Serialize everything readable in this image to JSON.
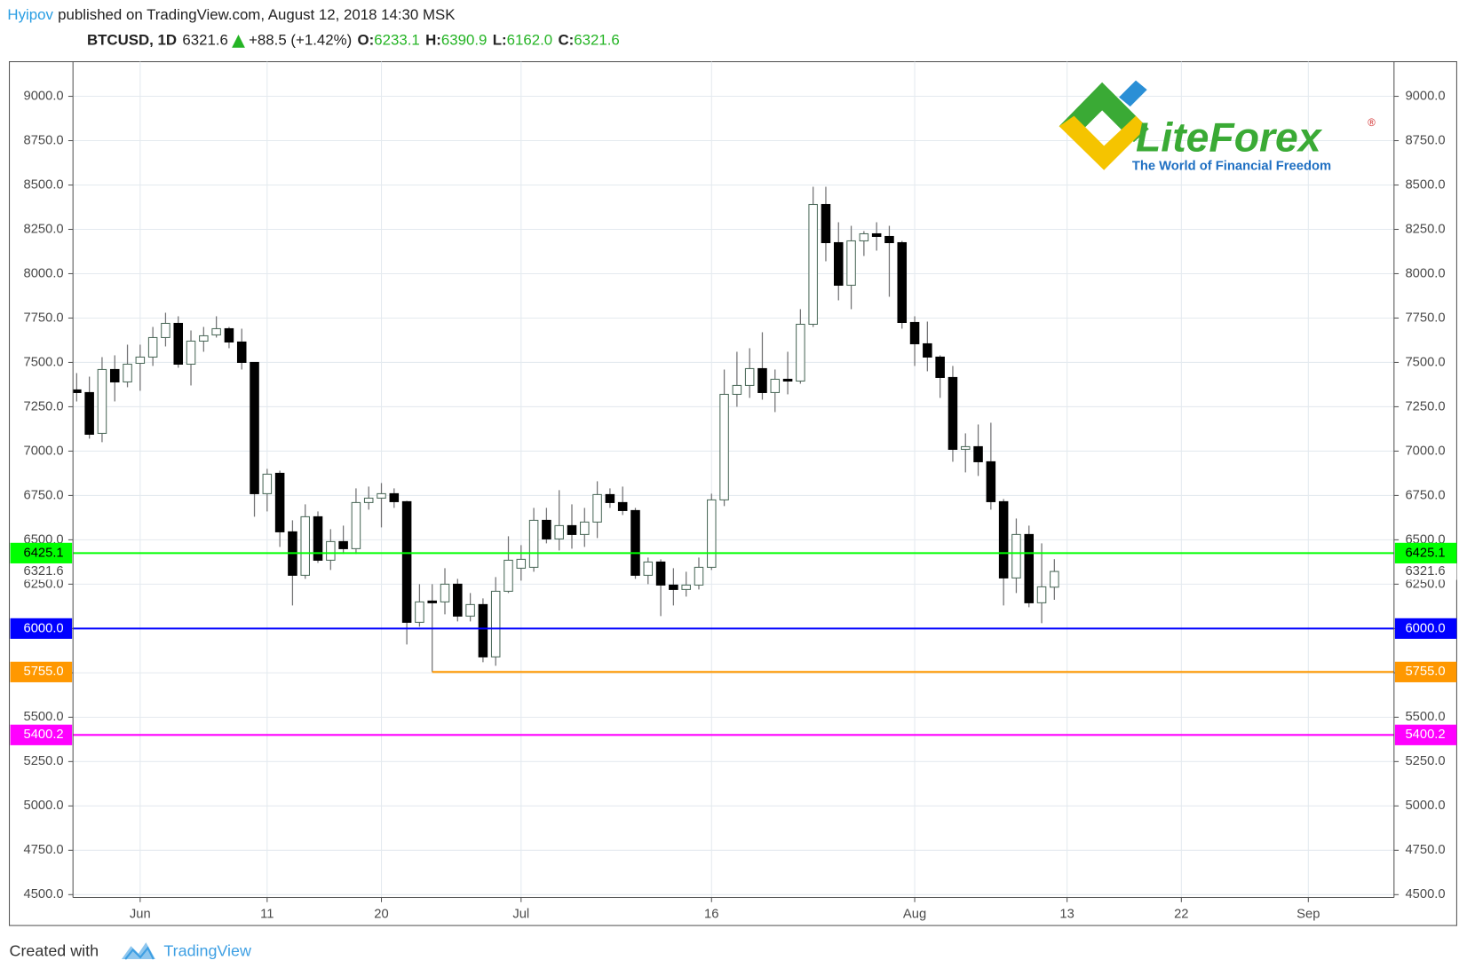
{
  "header": {
    "author": "Hyipov",
    "published": "published on TradingView.com, August 12, 2018 14:30 MSK",
    "symbol": "BTCUSD, 1D",
    "price": "6321.6",
    "change": "+88.5 (+1.42%)",
    "o_label": "O:",
    "o_value": "6233.1",
    "h_label": "H:",
    "h_value": "6390.9",
    "l_label": "L:",
    "l_value": "6162.0",
    "c_label": "C:",
    "c_value": "6321.6"
  },
  "logo": {
    "name": "LiteForex",
    "tagline": "The World of Financial Freedom",
    "mark": "®"
  },
  "footer": {
    "created": "Created with",
    "brand": "TradingView"
  },
  "chart_data": {
    "type": "candlestick",
    "x": [
      "2018-05-27",
      "2018-05-28",
      "2018-05-29",
      "2018-05-30",
      "2018-05-31",
      "2018-06-01",
      "2018-06-02",
      "2018-06-03",
      "2018-06-04",
      "2018-06-05",
      "2018-06-06",
      "2018-06-07",
      "2018-06-08",
      "2018-06-09",
      "2018-06-10",
      "2018-06-11",
      "2018-06-12",
      "2018-06-13",
      "2018-06-14",
      "2018-06-15",
      "2018-06-16",
      "2018-06-17",
      "2018-06-18",
      "2018-06-19",
      "2018-06-20",
      "2018-06-21",
      "2018-06-22",
      "2018-06-23",
      "2018-06-24",
      "2018-06-25",
      "2018-06-26",
      "2018-06-27",
      "2018-06-28",
      "2018-06-29",
      "2018-06-30",
      "2018-07-01",
      "2018-07-02",
      "2018-07-03",
      "2018-07-04",
      "2018-07-05",
      "2018-07-06",
      "2018-07-07",
      "2018-07-08",
      "2018-07-09",
      "2018-07-10",
      "2018-07-11",
      "2018-07-12",
      "2018-07-13",
      "2018-07-14",
      "2018-07-15",
      "2018-07-16",
      "2018-07-17",
      "2018-07-18",
      "2018-07-19",
      "2018-07-20",
      "2018-07-21",
      "2018-07-22",
      "2018-07-23",
      "2018-07-24",
      "2018-07-25",
      "2018-07-26",
      "2018-07-27",
      "2018-07-28",
      "2018-07-29",
      "2018-07-30",
      "2018-07-31",
      "2018-08-01",
      "2018-08-02",
      "2018-08-03",
      "2018-08-04",
      "2018-08-05",
      "2018-08-06",
      "2018-08-07",
      "2018-08-08",
      "2018-08-09",
      "2018-08-10",
      "2018-08-11",
      "2018-08-12"
    ],
    "open": [
      7345,
      7330,
      7100,
      7460,
      7390,
      7495,
      7530,
      7640,
      7720,
      7490,
      7620,
      7655,
      7690,
      7615,
      7500,
      6760,
      6875,
      6545,
      6300,
      6630,
      6385,
      6490,
      6450,
      6710,
      6735,
      6760,
      6715,
      6035,
      6155,
      6150,
      6250,
      6070,
      6135,
      5840,
      6210,
      6340,
      6345,
      6610,
      6505,
      6580,
      6530,
      6600,
      6755,
      6710,
      6665,
      6300,
      6375,
      6245,
      6220,
      6245,
      6345,
      6725,
      7320,
      7370,
      7465,
      7330,
      7405,
      7395,
      7715,
      8390,
      8175,
      7935,
      8185,
      8225,
      8210,
      8175,
      7725,
      7605,
      7530,
      7415,
      7010,
      7025,
      6940,
      6715,
      6285,
      6530,
      6145,
      6233.1
    ],
    "high": [
      7440,
      7420,
      7530,
      7540,
      7600,
      7600,
      7700,
      7780,
      7760,
      7680,
      7700,
      7760,
      7700,
      7690,
      7500,
      6900,
      6890,
      6610,
      6700,
      6660,
      6560,
      6580,
      6790,
      6800,
      6820,
      6790,
      6720,
      6250,
      6250,
      6340,
      6280,
      6200,
      6170,
      6290,
      6520,
      6470,
      6680,
      6680,
      6780,
      6700,
      6680,
      6830,
      6790,
      6800,
      6680,
      6400,
      6390,
      6340,
      6320,
      6400,
      6760,
      7460,
      7560,
      7580,
      7670,
      7460,
      7560,
      7800,
      8490,
      8490,
      8290,
      8270,
      8240,
      8290,
      8270,
      8185,
      7760,
      7730,
      7540,
      7480,
      7100,
      7150,
      7160,
      6730,
      6620,
      6580,
      6480,
      6390.9
    ],
    "low": [
      7280,
      7070,
      7050,
      7280,
      7360,
      7340,
      7480,
      7590,
      7470,
      7370,
      7560,
      7640,
      7580,
      7460,
      6630,
      6660,
      6460,
      6130,
      6280,
      6370,
      6330,
      6420,
      6420,
      6670,
      6570,
      6680,
      5910,
      6010,
      5755,
      6080,
      6040,
      6040,
      5810,
      5790,
      6200,
      6270,
      6320,
      6480,
      6440,
      6450,
      6460,
      6510,
      6680,
      6640,
      6280,
      6250,
      6070,
      6130,
      6180,
      6220,
      6330,
      6690,
      7250,
      7300,
      7290,
      7220,
      7320,
      7380,
      7700,
      8070,
      7850,
      7800,
      8100,
      8130,
      7870,
      7690,
      7480,
      7450,
      7300,
      6940,
      6880,
      6860,
      6670,
      6130,
      6200,
      6120,
      6030,
      6162.0
    ],
    "close": [
      7330,
      7095,
      7460,
      7390,
      7490,
      7530,
      7640,
      7720,
      7490,
      7620,
      7650,
      7690,
      7615,
      7500,
      6760,
      6870,
      6545,
      6300,
      6630,
      6385,
      6490,
      6450,
      6710,
      6735,
      6760,
      6715,
      6035,
      6150,
      6145,
      6250,
      6070,
      6135,
      5840,
      6210,
      6385,
      6390,
      6610,
      6505,
      6580,
      6530,
      6600,
      6755,
      6710,
      6665,
      6300,
      6375,
      6245,
      6220,
      6245,
      6345,
      6725,
      7320,
      7370,
      7465,
      7330,
      7405,
      7395,
      7715,
      8390,
      8175,
      7935,
      8185,
      8225,
      8210,
      8175,
      7725,
      7605,
      7530,
      7415,
      7010,
      7025,
      6940,
      6715,
      6285,
      6530,
      6145,
      6235,
      6321.6
    ],
    "up_color": "#ffffff",
    "up_border": "#4d6b5b",
    "down_color": "#000000",
    "wick_color": "#737375",
    "xlim": [
      "2018-05-26T17:00Z",
      "2018-09-07T18:00Z"
    ],
    "xticks": [
      {
        "value": "2018-06-01",
        "label": "Jun"
      },
      {
        "value": "2018-06-11",
        "label": "11"
      },
      {
        "value": "2018-06-20",
        "label": "20"
      },
      {
        "value": "2018-07-01",
        "label": "Jul"
      },
      {
        "value": "2018-07-16",
        "label": "16"
      },
      {
        "value": "2018-08-01",
        "label": "Aug"
      },
      {
        "value": "2018-08-13",
        "label": "13"
      },
      {
        "value": "2018-08-22",
        "label": "22"
      },
      {
        "value": "2018-09-01",
        "label": "Sep"
      }
    ],
    "ylim": [
      4484,
      9195
    ],
    "yticks": [
      {
        "value": 4500,
        "label": "4500.0"
      },
      {
        "value": 4750,
        "label": "4750.0"
      },
      {
        "value": 5000,
        "label": "5000.0"
      },
      {
        "value": 5250,
        "label": "5250.0"
      },
      {
        "value": 5500,
        "label": "5500.0"
      },
      {
        "value": 5750,
        "label": "5750.0"
      },
      {
        "value": 6000,
        "label": "6000.0"
      },
      {
        "value": 6250,
        "label": "6250.0"
      },
      {
        "value": 6500,
        "label": "6500.0"
      },
      {
        "value": 6750,
        "label": "6750.0"
      },
      {
        "value": 7000,
        "label": "7000.0"
      },
      {
        "value": 7250,
        "label": "7250.0"
      },
      {
        "value": 7500,
        "label": "7500.0"
      },
      {
        "value": 7750,
        "label": "7750.0"
      },
      {
        "value": 8000,
        "label": "8000.0"
      },
      {
        "value": 8250,
        "label": "8250.0"
      },
      {
        "value": 8500,
        "label": "8500.0"
      },
      {
        "value": 8750,
        "label": "8750.0"
      },
      {
        "value": 9000,
        "label": "9000.0"
      }
    ],
    "grid": true,
    "levels": [
      {
        "value": 6425.1,
        "label": "6425.1",
        "color": "#00ff00",
        "text_color": "#000000"
      },
      {
        "value": 6000,
        "label": "6000.0",
        "color": "#0000ff",
        "text_color": "#ffffff"
      },
      {
        "value": 5755,
        "label": "5755.0",
        "color": "#ff9800",
        "text_color": "#ffffff",
        "start": "2018-06-24"
      },
      {
        "value": 5400.2,
        "label": "5400.2",
        "color": "#ff00ff",
        "text_color": "#ffffff"
      }
    ]
  }
}
